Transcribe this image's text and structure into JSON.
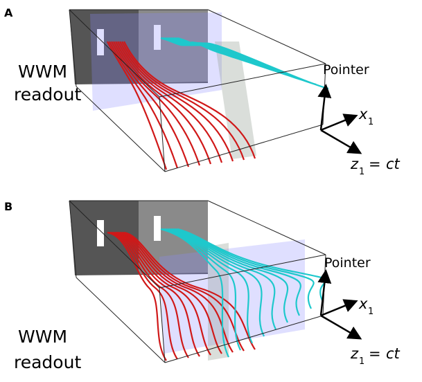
{
  "panels": [
    {
      "label": "A",
      "readout": [
        "WWM",
        "readout"
      ],
      "pointer": "Pointer",
      "x_axis": {
        "symbol": "x",
        "subscript": "1"
      },
      "z_axis": {
        "symbol": "z",
        "subscript": "1",
        "equals": "=",
        "rhs": "ct"
      }
    },
    {
      "label": "B",
      "readout": [
        "WWM",
        "readout"
      ],
      "pointer": "Pointer",
      "x_axis": {
        "symbol": "x",
        "subscript": "1"
      },
      "z_axis": {
        "symbol": "z",
        "subscript": "1",
        "equals": "=",
        "rhs": "ct"
      }
    }
  ]
}
